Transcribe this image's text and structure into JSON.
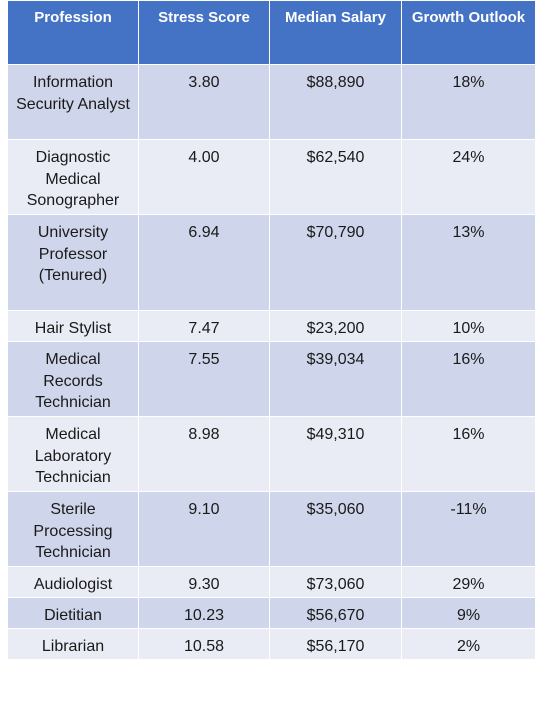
{
  "headers": [
    "Profession",
    "Stress Score",
    "Median Salary",
    "Growth Outlook"
  ],
  "rows": [
    {
      "profession": "Information Security Analyst",
      "stress": "3.80",
      "salary": "$88,890",
      "growth": "18%"
    },
    {
      "profession": "Diagnostic Medical Sonographer",
      "stress": "4.00",
      "salary": "$62,540",
      "growth": "24%"
    },
    {
      "profession": "University Professor (Tenured)",
      "stress": "6.94",
      "salary": "$70,790",
      "growth": "13%"
    },
    {
      "profession": "Hair Stylist",
      "stress": "7.47",
      "salary": "$23,200",
      "growth": "10%"
    },
    {
      "profession": "Medical Records Technician",
      "stress": "7.55",
      "salary": "$39,034",
      "growth": "16%"
    },
    {
      "profession": "Medical Laboratory Technician",
      "stress": "8.98",
      "salary": "$49,310",
      "growth": "16%"
    },
    {
      "profession": "Sterile Processing Technician",
      "stress": "9.10",
      "salary": "$35,060",
      "growth": "-11%"
    },
    {
      "profession": "Audiologist",
      "stress": "9.30",
      "salary": "$73,060",
      "growth": "29%"
    },
    {
      "profession": "Dietitian",
      "stress": "10.23",
      "salary": "$56,670",
      "growth": "9%"
    },
    {
      "profession": "Librarian",
      "stress": "10.58",
      "salary": "$56,170",
      "growth": "2%"
    }
  ],
  "colors": {
    "header_bg": "#4472c4",
    "header_text": "#ffffff",
    "row_band_dark": "#cfd5ea",
    "row_band_light": "#e9ebf5"
  }
}
